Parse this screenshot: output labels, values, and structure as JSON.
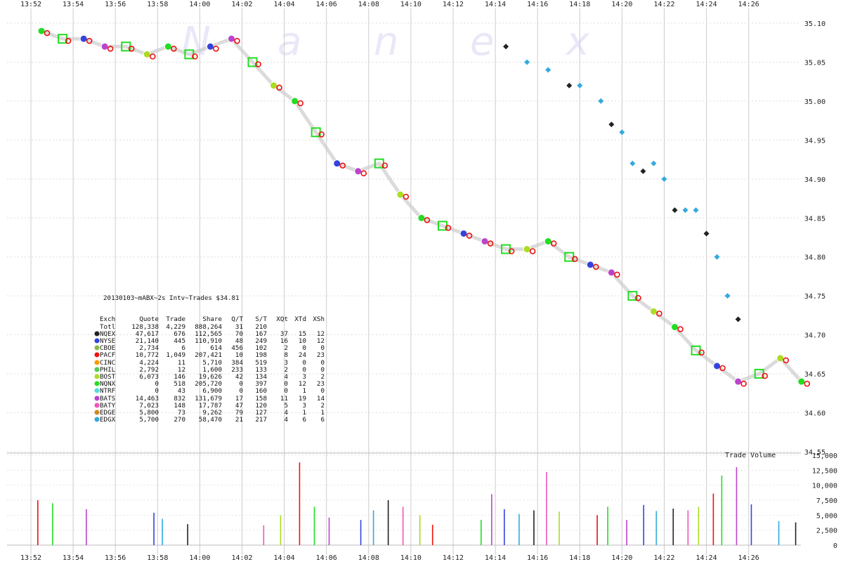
{
  "colors": {
    "NQEX": "#222222",
    "NYSE": "#3344dd",
    "CBOE": "#88bb44",
    "PACF": "#ee1111",
    "CINC": "#ff9900",
    "PHIL": "#55cc55",
    "BOST": "#aadd22",
    "NQNX": "#22dd22",
    "NTRF": "#55dddd",
    "BATS": "#bb44cc",
    "BATY": "#ee55bb",
    "EDGE": "#cc8822",
    "EDGX": "#33aadd",
    "grid": "#cccccc",
    "watermark": "#e8e8f8"
  },
  "watermark": [
    "N",
    "a",
    "n",
    "e",
    "x"
  ],
  "chart_data": [
    {
      "type": "scatter",
      "title": "20130103~mABX~2s Intv~Trades $34.81",
      "x_ticks": [
        "13:52",
        "13:54",
        "13:56",
        "13:58",
        "14:00",
        "14:02",
        "14:04",
        "14:06",
        "14:08",
        "14:10",
        "14:12",
        "14:14",
        "14:16",
        "14:18",
        "14:20",
        "14:22",
        "14:24",
        "14:26"
      ],
      "y_ticks": [
        "35.10",
        "35.05",
        "35.00",
        "34.95",
        "34.90",
        "34.85",
        "34.80",
        "34.75",
        "34.70",
        "34.65",
        "34.60",
        "34.55"
      ],
      "ylim": [
        34.55,
        35.1
      ],
      "grid": true,
      "series": [
        {
          "name": "Trades",
          "x_minutes": [
            0.5,
            1.5,
            2.5,
            3.5,
            4.5,
            5.5,
            6.5,
            7.5,
            8.5,
            9.5,
            10.5,
            11.5,
            12.5,
            13.5,
            14.5,
            15.5,
            16.5,
            17.5,
            18.5,
            19.5,
            20.5,
            21.5,
            22.5,
            23.5,
            24.5,
            25.5,
            26.5,
            27.5,
            28.5,
            29.5,
            30.5,
            31.5,
            32.5,
            33.5,
            34.5,
            35.5,
            36.5
          ],
          "y": [
            35.09,
            35.08,
            35.08,
            35.07,
            35.07,
            35.06,
            35.07,
            35.06,
            35.07,
            35.08,
            35.05,
            35.02,
            35.0,
            34.96,
            34.92,
            34.91,
            34.92,
            34.88,
            34.85,
            34.84,
            34.83,
            34.82,
            34.81,
            34.81,
            34.82,
            34.8,
            34.79,
            34.78,
            34.75,
            34.73,
            34.71,
            34.68,
            34.66,
            34.64,
            34.65,
            34.67,
            34.64
          ]
        },
        {
          "name": "EDGX quotes",
          "x_minutes": [
            22.5,
            23.5,
            24.5,
            25.5,
            26.0,
            27.0,
            27.5,
            28.0,
            28.5,
            29.0,
            29.5,
            30.0,
            30.5,
            31.0,
            31.5,
            32.0,
            32.5,
            33.0,
            33.5
          ],
          "y": [
            35.07,
            35.05,
            35.04,
            35.02,
            35.02,
            35.0,
            34.97,
            34.96,
            34.92,
            34.91,
            34.92,
            34.9,
            34.86,
            34.86,
            34.86,
            34.83,
            34.8,
            34.75,
            34.72
          ]
        }
      ],
      "legend": {
        "header": [
          "Exch",
          "Quote",
          "Trade",
          "Share",
          "Q/T",
          "S/T",
          "XQt",
          "XTd",
          "XSh"
        ],
        "total": [
          "Totl",
          "128,338",
          "4,229",
          "888,264",
          "31",
          "210",
          "",
          "",
          ""
        ],
        "rows": [
          [
            "NQEX",
            "47,617",
            "676",
            "112,565",
            "70",
            "167",
            "37",
            "15",
            "12"
          ],
          [
            "NYSE",
            "21,140",
            "445",
            "110,910",
            "48",
            "249",
            "16",
            "10",
            "12"
          ],
          [
            "CBOE",
            "2,734",
            "6",
            "614",
            "456",
            "102",
            "2",
            "0",
            "0"
          ],
          [
            "PACF",
            "10,772",
            "1,049",
            "207,421",
            "10",
            "198",
            "8",
            "24",
            "23"
          ],
          [
            "CINC",
            "4,224",
            "11",
            "5,710",
            "384",
            "519",
            "3",
            "0",
            "0"
          ],
          [
            "PHIL",
            "2,792",
            "12",
            "1,600",
            "233",
            "133",
            "2",
            "0",
            "0"
          ],
          [
            "BOST",
            "6,073",
            "146",
            "19,626",
            "42",
            "134",
            "4",
            "3",
            "2"
          ],
          [
            "NQNX",
            "0",
            "518",
            "205,720",
            "0",
            "397",
            "0",
            "12",
            "23"
          ],
          [
            "NTRF",
            "0",
            "43",
            "6,900",
            "0",
            "160",
            "0",
            "1",
            "0"
          ],
          [
            "BATS",
            "14,463",
            "832",
            "131,679",
            "17",
            "158",
            "11",
            "19",
            "14"
          ],
          [
            "BATY",
            "7,023",
            "148",
            "17,787",
            "47",
            "120",
            "5",
            "3",
            "2"
          ],
          [
            "EDGE",
            "5,800",
            "73",
            "9,262",
            "79",
            "127",
            "4",
            "1",
            "1"
          ],
          [
            "EDGX",
            "5,700",
            "270",
            "58,470",
            "21",
            "217",
            "4",
            "6",
            "6"
          ]
        ]
      }
    },
    {
      "type": "bar",
      "title": "Trade Volume",
      "y_ticks": [
        "15,000",
        "12,500",
        "10,000",
        "7,500",
        "5,000",
        "2,500",
        "0"
      ],
      "ylim": [
        0,
        15000
      ],
      "x_minutes": [
        0.3,
        1.0,
        2.6,
        5.8,
        6.2,
        7.4,
        11.0,
        11.8,
        12.7,
        13.4,
        14.1,
        15.6,
        16.2,
        16.9,
        17.6,
        18.4,
        19.0,
        21.3,
        21.8,
        22.4,
        23.1,
        23.8,
        24.4,
        25.0,
        26.8,
        27.3,
        28.2,
        29.0,
        29.6,
        30.4,
        31.1,
        31.6,
        32.3,
        32.7,
        33.4,
        34.1,
        35.4,
        36.2
      ],
      "values": [
        7500,
        7000,
        6000,
        5400,
        4400,
        3500,
        3300,
        5000,
        13800,
        6400,
        4600,
        4200,
        5800,
        7500,
        6400,
        5000,
        3400,
        4200,
        8500,
        6000,
        5200,
        5800,
        12200,
        5600,
        5000,
        6400,
        4200,
        6700,
        5700,
        6100,
        5800,
        6400,
        8600,
        11600,
        13000,
        6800,
        4000,
        3800
      ]
    }
  ]
}
